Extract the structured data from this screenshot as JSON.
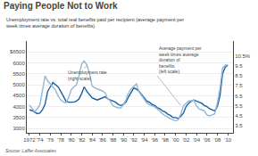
{
  "chart_data": {
    "type": "line",
    "title": "Paying People Not to Work",
    "subtitle": "Unemployment rate vs. total real benefits paid per recipient (average payment per\nweek times average duration of benefits)",
    "source": "Source: Laffer Associates",
    "x": [
      1972,
      1972.5,
      1973,
      1973.5,
      1974,
      1974.5,
      1975,
      1975.5,
      1976,
      1976.5,
      1977,
      1977.5,
      1978,
      1978.5,
      1979,
      1979.5,
      1980,
      1980.5,
      1981,
      1981.5,
      1982,
      1982.5,
      1983,
      1983.5,
      1984,
      1984.5,
      1985,
      1985.5,
      1986,
      1986.5,
      1987,
      1987.5,
      1988,
      1988.5,
      1989,
      1989.5,
      1990,
      1990.5,
      1991,
      1991.5,
      1992,
      1992.5,
      1993,
      1993.5,
      1994,
      1994.5,
      1995,
      1995.5,
      1996,
      1996.5,
      1997,
      1997.5,
      1998,
      1998.5,
      1999,
      1999.5,
      2000,
      2000.5,
      2001,
      2001.5,
      2002,
      2002.5,
      2003,
      2003.5,
      2004,
      2004.5,
      2005,
      2005.5,
      2006,
      2006.5,
      2007,
      2007.5,
      2008,
      2008.5,
      2009,
      2009.5,
      2010
    ],
    "xlim": [
      1971.5,
      2011
    ],
    "xticks": [
      1972,
      {
        "value": 1974,
        "label": "'74"
      },
      {
        "value": 1976,
        "label": "'76"
      },
      {
        "value": 1978,
        "label": "'78"
      },
      {
        "value": 1980,
        "label": "'80"
      },
      {
        "value": 1982,
        "label": "'82"
      },
      {
        "value": 1984,
        "label": "'84"
      },
      {
        "value": 1986,
        "label": "'86"
      },
      {
        "value": 1988,
        "label": "'88"
      },
      {
        "value": 1990,
        "label": "'90"
      },
      {
        "value": 1992,
        "label": "'92"
      },
      {
        "value": 1994,
        "label": "'94"
      },
      {
        "value": 1996,
        "label": "'96"
      },
      {
        "value": 1998,
        "label": "'98"
      },
      {
        "value": 2000,
        "label": "'00"
      },
      {
        "value": 2002,
        "label": "'02"
      },
      {
        "value": 2004,
        "label": "'04"
      },
      {
        "value": 2006,
        "label": "'06"
      },
      {
        "value": 2008,
        "label": "'08"
      },
      {
        "value": 2010,
        "label": "'10"
      }
    ],
    "ylim": [
      2800,
      7000
    ],
    "yticks": [
      3000,
      3500,
      4000,
      4500,
      5000,
      5500,
      6000,
      {
        "value": 6500,
        "label": "$6500"
      }
    ],
    "y2lim": [
      2.8,
      12.0
    ],
    "y2ticks": [
      3.5,
      4.5,
      5.5,
      6.5,
      7.5,
      8.5,
      9.5,
      {
        "value": 10.5,
        "label": "10.5%"
      }
    ],
    "grid": true,
    "series": [
      {
        "color": "#1a5fa0",
        "values": [
          3850,
          3820,
          3750,
          3680,
          3700,
          3850,
          4100,
          4700,
          4900,
          5100,
          5000,
          4900,
          4700,
          4450,
          4250,
          4200,
          4200,
          4200,
          4250,
          4350,
          4600,
          4900,
          4700,
          4550,
          4400,
          4350,
          4300,
          4350,
          4400,
          4450,
          4350,
          4300,
          4250,
          4200,
          4100,
          4050,
          4100,
          4200,
          4450,
          4650,
          4850,
          4800,
          4700,
          4550,
          4400,
          4250,
          4200,
          4100,
          4050,
          3950,
          3900,
          3800,
          3750,
          3650,
          3600,
          3500,
          3500,
          3450,
          3550,
          3700,
          4000,
          4150,
          4250,
          4300,
          4250,
          4200,
          4150,
          4050,
          4000,
          3900,
          3850,
          3800,
          4000,
          4500,
          5500,
          5800,
          5900
        ]
      },
      {
        "color": "#90b8d8",
        "axis": "y2",
        "values": [
          5.6,
          5.2,
          4.9,
          5.2,
          5.6,
          7.0,
          8.5,
          8.0,
          7.7,
          7.3,
          7.1,
          6.5,
          6.1,
          5.9,
          5.8,
          6.3,
          7.1,
          7.4,
          7.6,
          8.5,
          9.7,
          10.0,
          9.6,
          8.8,
          7.5,
          7.3,
          7.2,
          7.1,
          7.0,
          6.8,
          6.2,
          6.0,
          5.5,
          5.4,
          5.3,
          5.3,
          5.6,
          6.1,
          6.8,
          7.2,
          7.5,
          7.7,
          6.9,
          6.5,
          6.1,
          5.8,
          5.6,
          5.5,
          5.4,
          5.2,
          4.9,
          4.7,
          4.5,
          4.4,
          4.2,
          4.1,
          4.0,
          4.1,
          4.7,
          5.5,
          5.8,
          6.0,
          6.0,
          6.1,
          5.5,
          5.2,
          5.1,
          5.0,
          4.6,
          4.5,
          4.6,
          4.7,
          5.8,
          7.2,
          9.3,
          9.6,
          9.6
        ]
      }
    ],
    "annotations": [
      {
        "text": "Unemployment rate\n(right scale)",
        "x": 1983,
        "y": 9.5,
        "text_x": 1979,
        "text_y": 7.8,
        "axis": "y2"
      },
      {
        "text": "Average payment per\nweek times average\nduration of\nbenefits\n(left scale)",
        "x": 2001,
        "y": 4050,
        "text_x": 1996.5,
        "text_y": 5400
      }
    ]
  }
}
